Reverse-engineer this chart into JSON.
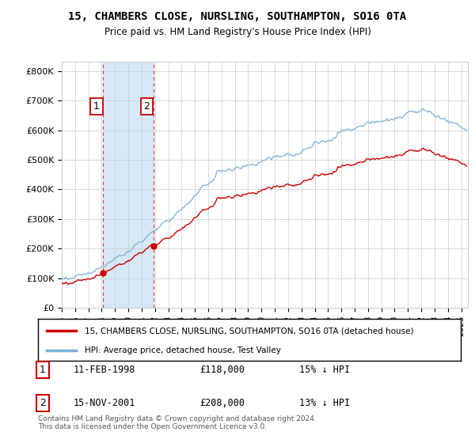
{
  "title": "15, CHAMBERS CLOSE, NURSLING, SOUTHAMPTON, SO16 0TA",
  "subtitle": "Price paid vs. HM Land Registry's House Price Index (HPI)",
  "ylabel_ticks": [
    "£0",
    "£100K",
    "£200K",
    "£300K",
    "£400K",
    "£500K",
    "£600K",
    "£700K",
    "£800K"
  ],
  "ytick_values": [
    0,
    100000,
    200000,
    300000,
    400000,
    500000,
    600000,
    700000,
    800000
  ],
  "ylim": [
    0,
    830000
  ],
  "xlim_start": 1995.0,
  "xlim_end": 2025.5,
  "sale1_date": 1998.11,
  "sale1_price": 118000,
  "sale1_label": "1",
  "sale2_date": 2001.88,
  "sale2_price": 208000,
  "sale2_label": "2",
  "sale_color": "#cc0000",
  "hpi_color": "#7ab0d4",
  "shade_color": "#d6e8f5",
  "legend_line1": "15, CHAMBERS CLOSE, NURSLING, SOUTHAMPTON, SO16 0TA (detached house)",
  "legend_line2": "HPI: Average price, detached house, Test Valley",
  "table_entries": [
    {
      "label": "1",
      "date": "11-FEB-1998",
      "price": "£118,000",
      "hpi": "15% ↓ HPI"
    },
    {
      "label": "2",
      "date": "15-NOV-2001",
      "price": "£208,000",
      "hpi": "13% ↓ HPI"
    }
  ],
  "footnote": "Contains HM Land Registry data © Crown copyright and database right 2024.\nThis data is licensed under the Open Government Licence v3.0.",
  "background_color": "#ffffff",
  "grid_color": "#cccccc"
}
